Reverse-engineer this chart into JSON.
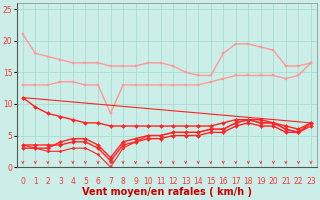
{
  "title": "",
  "xlabel": "Vent moyen/en rafales ( km/h )",
  "bg_color": "#cceee8",
  "grid_color": "#aaddcc",
  "xlim": [
    -0.5,
    23.5
  ],
  "ylim": [
    0,
    26
  ],
  "yticks": [
    0,
    5,
    10,
    15,
    20,
    25
  ],
  "lines": [
    {
      "x": [
        0,
        1,
        2,
        3,
        4,
        5,
        6,
        7,
        8,
        9,
        10,
        11,
        12,
        13,
        14,
        15,
        16,
        17,
        18,
        19,
        20,
        21,
        22,
        23
      ],
      "y": [
        21,
        18,
        17.5,
        17,
        16.5,
        16.5,
        16.5,
        16,
        16,
        16,
        16.5,
        16.5,
        16,
        15,
        14.5,
        14.5,
        18,
        19.5,
        19.5,
        19,
        18.5,
        16,
        16,
        16.5
      ],
      "color": "#ff9999",
      "lw": 1.0,
      "marker": "s",
      "ms": 2.0
    },
    {
      "x": [
        0,
        1,
        2,
        3,
        4,
        5,
        6,
        7,
        8,
        9,
        10,
        11,
        12,
        13,
        14,
        15,
        16,
        17,
        18,
        19,
        20,
        21,
        22,
        23
      ],
      "y": [
        13,
        13,
        13,
        13.5,
        13.5,
        13,
        13,
        8.5,
        13,
        13,
        13,
        13,
        13,
        13,
        13,
        13.5,
        14,
        14.5,
        14.5,
        14.5,
        14.5,
        14,
        14.5,
        16.5
      ],
      "color": "#ff9999",
      "lw": 1.0,
      "marker": "s",
      "ms": 2.0
    },
    {
      "x": [
        0,
        1,
        2,
        3,
        4,
        5,
        6,
        7,
        8,
        9,
        10,
        11,
        12,
        13,
        14,
        15,
        16,
        17,
        18,
        19,
        20,
        21,
        22,
        23
      ],
      "y": [
        11,
        9.5,
        8.5,
        8,
        7.5,
        7,
        7,
        6.5,
        6.5,
        6.5,
        6.5,
        6.5,
        6.5,
        6.5,
        6.5,
        6.5,
        7,
        7.5,
        7.5,
        7.5,
        7,
        6.5,
        6,
        7
      ],
      "color": "#ff2222",
      "lw": 1.0,
      "marker": "D",
      "ms": 2.0
    },
    {
      "x": [
        0,
        1,
        2,
        3,
        4,
        5,
        6,
        7,
        8,
        9,
        10,
        11,
        12,
        13,
        14,
        15,
        16,
        17,
        18,
        19,
        20,
        21,
        22,
        23
      ],
      "y": [
        3.5,
        3.5,
        3.5,
        3.5,
        4,
        4,
        3,
        1,
        3.5,
        4,
        4.5,
        4.5,
        5,
        5,
        5,
        5.5,
        5.5,
        6.5,
        7,
        6.5,
        6.5,
        5.5,
        5.5,
        6.5
      ],
      "color": "#ff2222",
      "lw": 1.0,
      "marker": "D",
      "ms": 2.0
    },
    {
      "x": [
        0,
        1,
        2,
        3,
        4,
        5,
        6,
        7,
        8,
        9,
        10,
        11,
        12,
        13,
        14,
        15,
        16,
        17,
        18,
        19,
        20,
        21,
        22,
        23
      ],
      "y": [
        3,
        3,
        3,
        4,
        4.5,
        4.5,
        3.5,
        1.5,
        4,
        4.5,
        5,
        5,
        5.5,
        5.5,
        5.5,
        6,
        6,
        7,
        7.5,
        7,
        7,
        6,
        5.5,
        7
      ],
      "color": "#ff2222",
      "lw": 1.0,
      "marker": "D",
      "ms": 2.0
    },
    {
      "x": [
        0,
        1,
        2,
        3,
        4,
        5,
        6,
        7,
        8,
        9,
        10,
        11,
        12,
        13,
        14,
        15,
        16,
        17,
        18,
        19,
        20,
        21,
        22,
        23
      ],
      "y": [
        3.5,
        3,
        2.5,
        2.5,
        3,
        3,
        2,
        0,
        3,
        4,
        5,
        5,
        5.5,
        5.5,
        5.5,
        6,
        6,
        7,
        7.5,
        7,
        7,
        6,
        5.5,
        7
      ],
      "color": "#ff2222",
      "lw": 0.8,
      "marker": "D",
      "ms": 1.5
    },
    {
      "x": [
        0,
        23
      ],
      "y": [
        11,
        7
      ],
      "color": "#ff2222",
      "lw": 0.8,
      "marker": null,
      "ms": 0
    }
  ],
  "arrow_color": "#ff3333",
  "tick_label_color": "#ff3333",
  "xlabel_color": "#cc0000",
  "xlabel_fontsize": 7,
  "tick_fontsize": 5.5
}
